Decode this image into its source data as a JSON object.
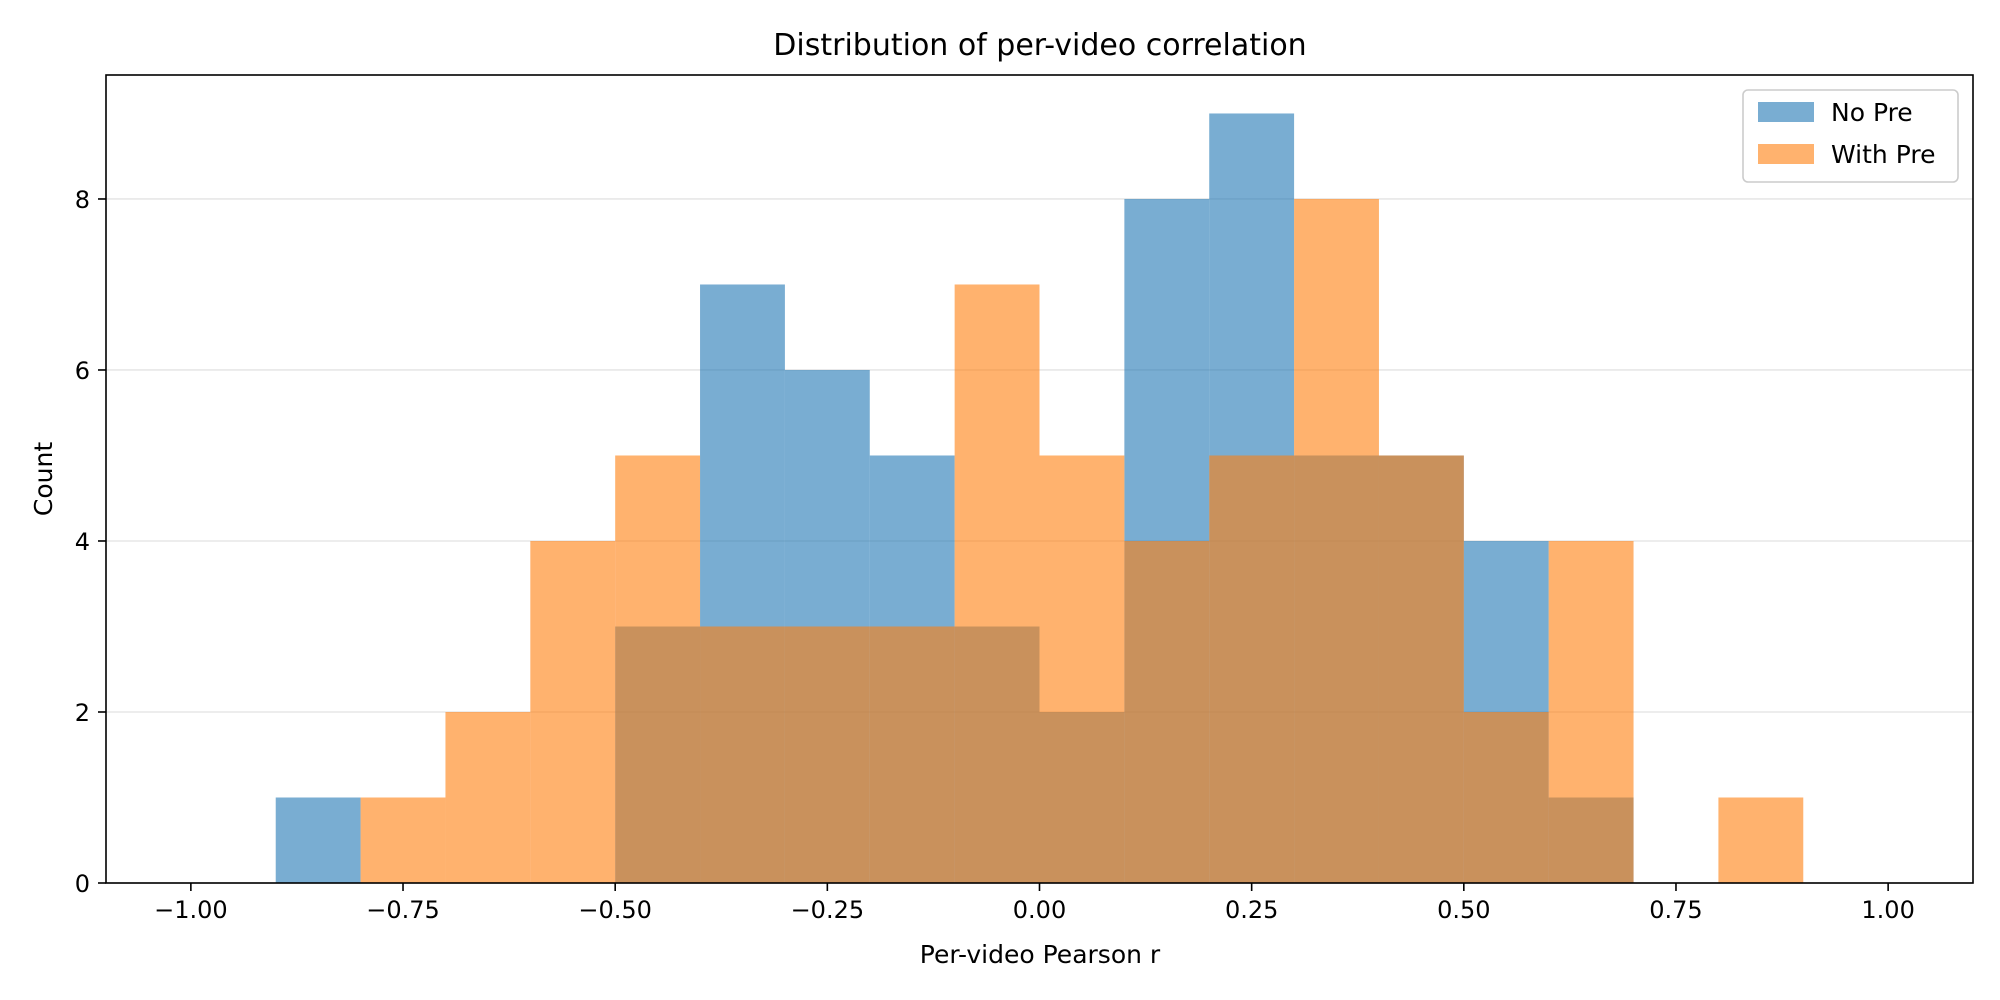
{
  "chart_data": {
    "type": "bar",
    "title": "Distribution of per-video correlation",
    "xlabel": "Per-video Pearson r",
    "ylabel": "Count",
    "xlim": [
      -1.1,
      1.1
    ],
    "ylim": [
      0,
      9.45
    ],
    "xticks": [
      -1.0,
      -0.75,
      -0.5,
      -0.25,
      0.0,
      0.25,
      0.5,
      0.75,
      1.0
    ],
    "xtick_labels": [
      "−1.00",
      "−0.75",
      "−0.50",
      "−0.25",
      "0.00",
      "0.25",
      "0.50",
      "0.75",
      "1.00"
    ],
    "yticks": [
      0,
      2,
      4,
      6,
      8
    ],
    "ytick_labels": [
      "0",
      "2",
      "4",
      "6",
      "8"
    ],
    "grid": "horizontal",
    "legend_position": "top-right",
    "bin_edges": [
      -1.0,
      -0.9,
      -0.8,
      -0.7,
      -0.6,
      -0.5,
      -0.4,
      -0.3,
      -0.2,
      -0.1,
      0.0,
      0.1,
      0.2,
      0.3,
      0.4,
      0.5,
      0.6,
      0.7,
      0.8,
      0.9,
      1.0
    ],
    "series": [
      {
        "name": "No Pre",
        "color": "#1f77b4",
        "alpha": 0.6,
        "values": [
          0,
          1,
          0,
          0,
          0,
          3,
          7,
          6,
          5,
          3,
          2,
          8,
          9,
          5,
          5,
          4,
          1,
          0,
          0,
          0
        ]
      },
      {
        "name": "With Pre",
        "color": "#ff7f0e",
        "alpha": 0.6,
        "values": [
          0,
          0,
          1,
          2,
          4,
          5,
          3,
          3,
          3,
          7,
          5,
          4,
          5,
          8,
          5,
          2,
          4,
          0,
          1,
          0
        ]
      }
    ]
  }
}
